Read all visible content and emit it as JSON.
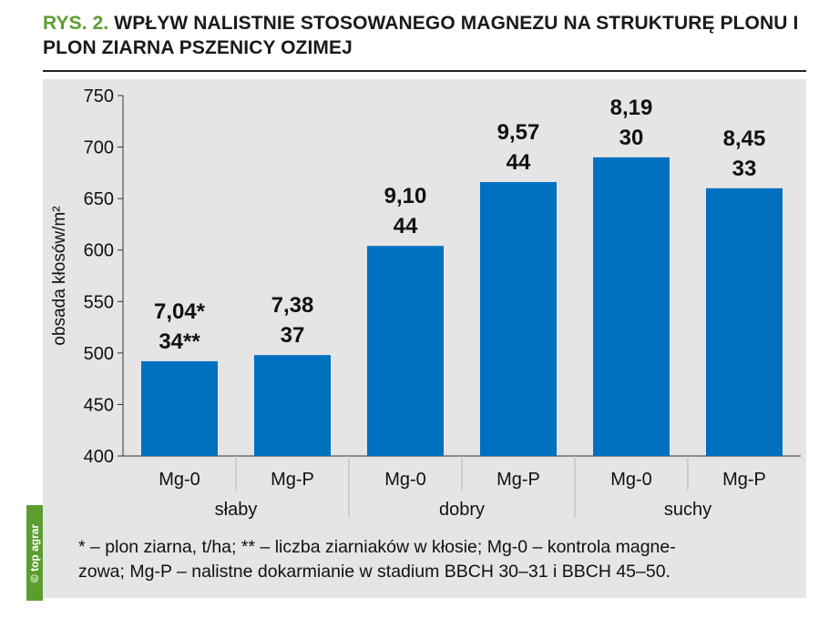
{
  "figure": {
    "label": "RYS. 2.",
    "title": "WPŁYW NALISTNIE STOSOWANEGO MAGNEZU NA STRUKTURĘ PLONU I PLON ZIARNA PSZENICY OZIMEJ"
  },
  "chart_data": {
    "type": "bar",
    "ylabel": "obsada kłosów/m²",
    "ylim": [
      400,
      750
    ],
    "yticks": [
      "750",
      "700",
      "650",
      "600",
      "550",
      "500",
      "450",
      "400"
    ],
    "categories": [
      "Mg-0",
      "Mg-P",
      "Mg-0",
      "Mg-P",
      "Mg-0",
      "Mg-P"
    ],
    "groups": [
      "słaby",
      "dobry",
      "suchy"
    ],
    "values": [
      492,
      498,
      604,
      666,
      690,
      660
    ],
    "label_yield": [
      "7,04*",
      "7,38",
      "9,10",
      "9,57",
      "8,19",
      "8,45"
    ],
    "label_grains": [
      "34**",
      "37",
      "44",
      "44",
      "30",
      "33"
    ],
    "bar_color": "#0070c0",
    "grid": false
  },
  "footnote": "* – plon ziarna, t/ha; ** – liczba ziarniaków w kłosie; Mg-0 – kontrola magnezowa; Mg-P – nalistne dokarmianie w stadium BBCH 30–31 i BBCH 45–50.",
  "footnote_lines": [
    "* – plon ziarna, t/ha; ** – liczba ziarniaków w kłosie; Mg-0 – kontrola magne-",
    "zowa; Mg-P – nalistne dokarmianie w stadium BBCH 30–31 i BBCH 45–50."
  ],
  "badge": "© top agrar"
}
